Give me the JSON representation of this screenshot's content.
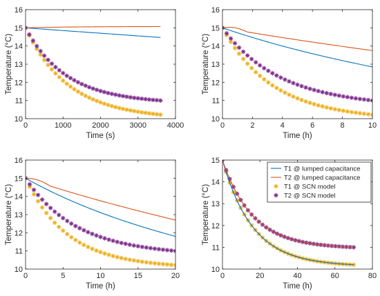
{
  "chart_data": [
    {
      "type": "line",
      "xlabel": "Time (s)",
      "ylabel": "Temperature (°C)",
      "xlim": [
        0,
        4000
      ],
      "ylim": [
        10,
        16
      ],
      "xticks": [
        0,
        1000,
        2000,
        3000,
        4000
      ],
      "yticks": [
        10,
        11,
        12,
        13,
        14,
        15,
        16
      ],
      "grid": false,
      "series": [
        {
          "name": "T1 @ lumped capacitance",
          "style": "line",
          "color": "#0072bd",
          "x": [
            0,
            3600
          ],
          "start": 15.0,
          "end": 14.47,
          "tau": 16000
        },
        {
          "name": "T2 @ lumped capacitance",
          "style": "line",
          "color": "#d95319",
          "x": [
            0,
            3600
          ],
          "start": 15.0,
          "end": 15.07,
          "tau": 1200
        },
        {
          "name": "T1 @ SCN model",
          "style": "star",
          "color": "#edb120",
          "x": [
            0,
            3600
          ],
          "start": 15.0,
          "end": 10.22,
          "tau": 1100,
          "n": 37
        },
        {
          "name": "T2 @ SCN model",
          "style": "star",
          "color": "#7e2f8e",
          "x": [
            0,
            3600
          ],
          "start": 15.0,
          "end": 11.0,
          "tau": 1050,
          "n": 37
        }
      ]
    },
    {
      "type": "line",
      "xlabel": "Time (h)",
      "ylabel": "Temperature (°C)",
      "xlim": [
        0,
        10
      ],
      "ylim": [
        10,
        16
      ],
      "xticks": [
        0,
        2,
        4,
        6,
        8,
        10
      ],
      "yticks": [
        10,
        11,
        12,
        13,
        14,
        15,
        16
      ],
      "grid": false,
      "series": [
        {
          "name": "T1 @ lumped capacitance",
          "style": "line",
          "color": "#0072bd",
          "x": [
            0,
            10
          ],
          "start": 15.0,
          "end": 12.85,
          "tau": 11
        },
        {
          "name": "T2 @ lumped capacitance",
          "style": "line",
          "color": "#d95319",
          "x": [
            0,
            10
          ],
          "start": 15.0,
          "end": 13.75,
          "tau": 18,
          "bump": 0.12
        },
        {
          "name": "T1 @ SCN model",
          "style": "star",
          "color": "#edb120",
          "x": [
            0,
            10
          ],
          "start": 15.0,
          "end": 10.22,
          "tau": 3.2,
          "n": 37
        },
        {
          "name": "T2 @ SCN model",
          "style": "star",
          "color": "#7e2f8e",
          "x": [
            0,
            10
          ],
          "start": 15.0,
          "end": 11.0,
          "tau": 3.6,
          "n": 37
        }
      ]
    },
    {
      "type": "line",
      "xlabel": "Time (h)",
      "ylabel": "Temperature (°C)",
      "xlim": [
        0,
        20
      ],
      "ylim": [
        10,
        16
      ],
      "xticks": [
        0,
        5,
        10,
        15,
        20
      ],
      "yticks": [
        10,
        11,
        12,
        13,
        14,
        15,
        16
      ],
      "grid": false,
      "series": [
        {
          "name": "T1 @ lumped capacitance",
          "style": "line",
          "color": "#0072bd",
          "x": [
            0,
            20
          ],
          "start": 15.0,
          "end": 11.8,
          "tau": 18
        },
        {
          "name": "T2 @ lumped capacitance",
          "style": "line",
          "color": "#d95319",
          "x": [
            0,
            20
          ],
          "start": 15.0,
          "end": 12.7,
          "tau": 30,
          "bump": 0.12
        },
        {
          "name": "T1 @ SCN model",
          "style": "star",
          "color": "#edb120",
          "x": [
            0,
            20
          ],
          "start": 15.0,
          "end": 10.22,
          "tau": 5.5,
          "n": 37
        },
        {
          "name": "T2 @ SCN model",
          "style": "star",
          "color": "#7e2f8e",
          "x": [
            0,
            20
          ],
          "start": 15.0,
          "end": 11.0,
          "tau": 6.5,
          "n": 37
        }
      ]
    },
    {
      "type": "line",
      "xlabel": "Time (h)",
      "ylabel": "Temperature (°C)",
      "xlim": [
        0,
        80
      ],
      "ylim": [
        10,
        15
      ],
      "xticks": [
        0,
        20,
        40,
        60,
        80
      ],
      "yticks": [
        10,
        11,
        12,
        13,
        14,
        15
      ],
      "grid": false,
      "legend": "top-right",
      "series": [
        {
          "name": "T1 @ lumped capacitance",
          "style": "line",
          "color": "#0072bd",
          "x": [
            0,
            70
          ],
          "start": 15.0,
          "end": 10.2,
          "tau": 16
        },
        {
          "name": "T2 @ lumped capacitance",
          "style": "line",
          "color": "#d95319",
          "x": [
            0,
            70
          ],
          "start": 15.0,
          "end": 11.0,
          "tau": 16
        },
        {
          "name": "T1 @ SCN model",
          "style": "star",
          "color": "#edb120",
          "x": [
            0,
            70
          ],
          "start": 15.0,
          "end": 10.2,
          "tau": 16,
          "n": 37
        },
        {
          "name": "T2 @ SCN model",
          "style": "star",
          "color": "#7e2f8e",
          "x": [
            0,
            70
          ],
          "start": 15.0,
          "end": 11.0,
          "tau": 16,
          "n": 37
        }
      ]
    }
  ]
}
